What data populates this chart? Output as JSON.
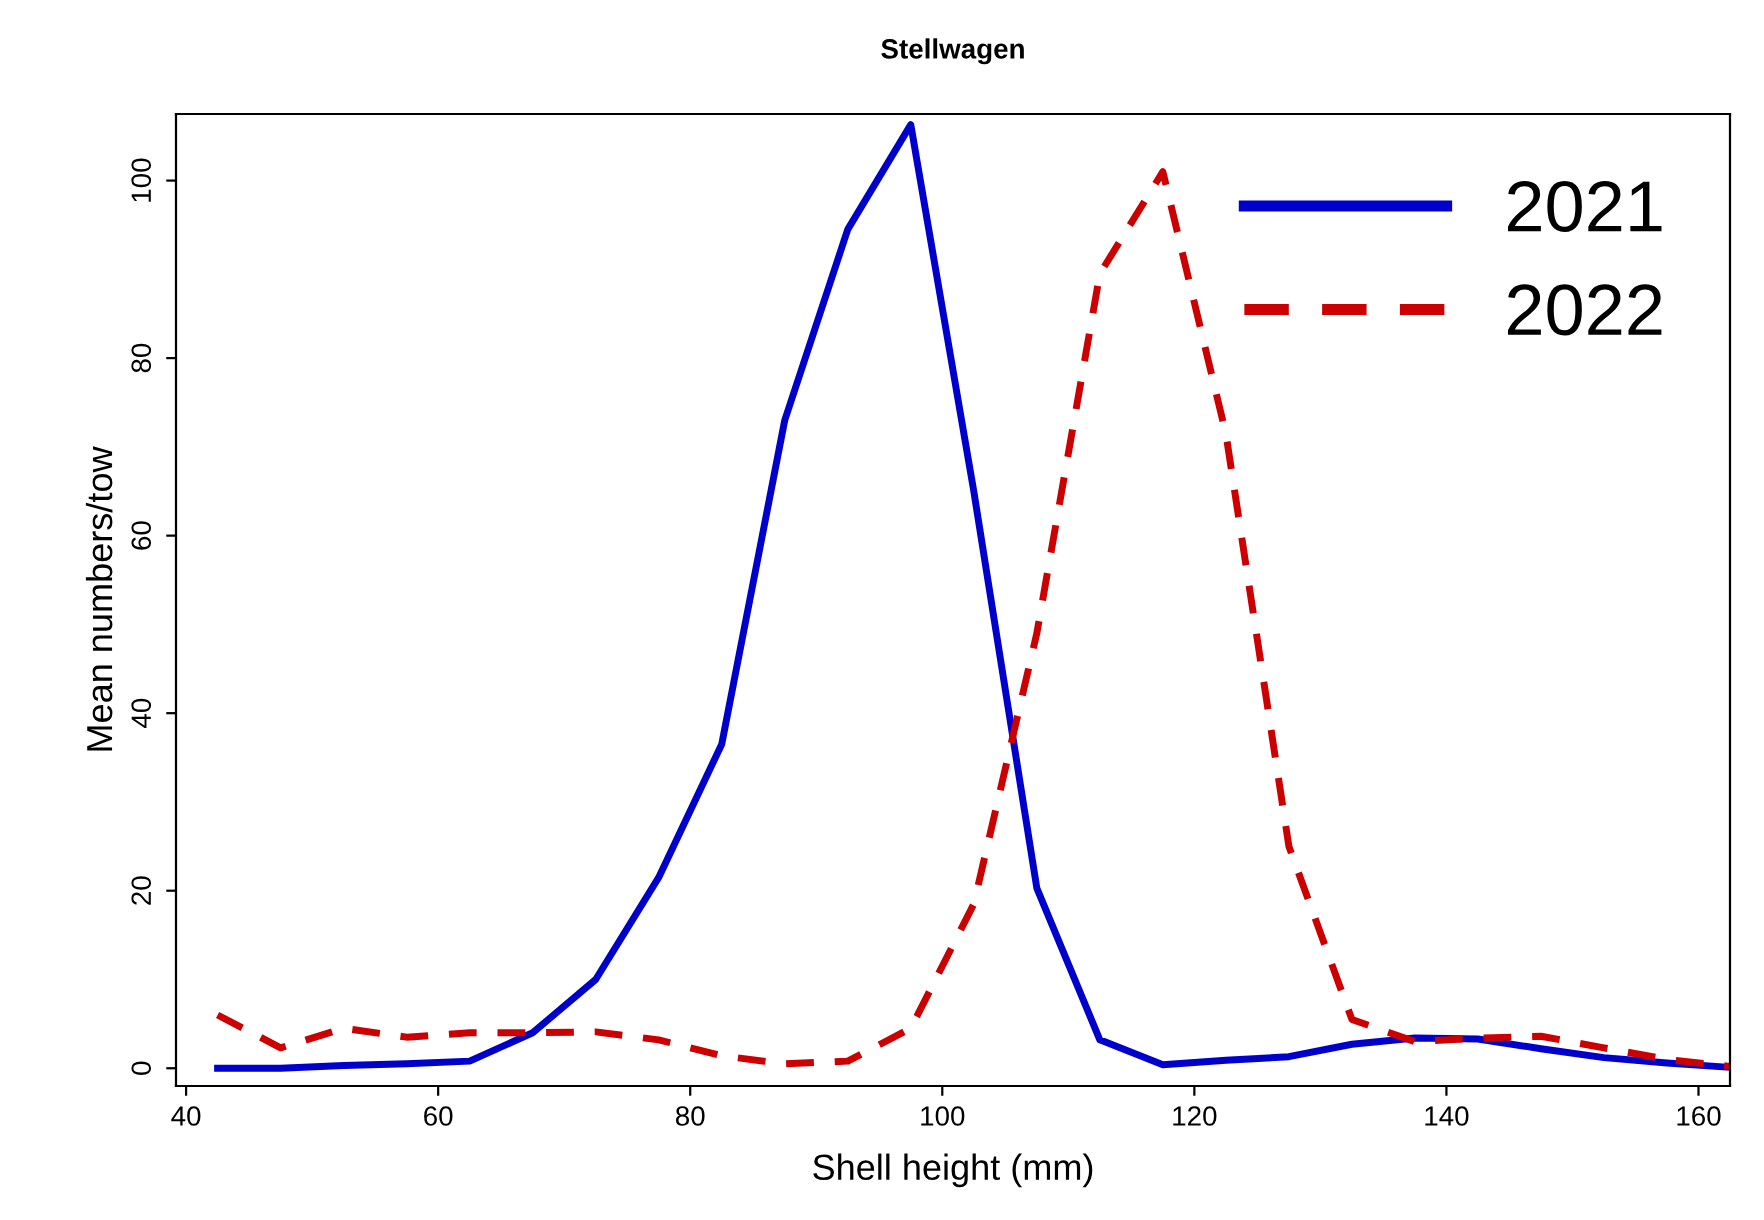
{
  "chart_data": {
    "type": "line",
    "title": "Stellwagen",
    "xlabel": "Shell height (mm)",
    "ylabel": "Mean numbers/tow",
    "x": [
      42.5,
      47.5,
      52.5,
      57.5,
      62.5,
      67.5,
      72.5,
      77.5,
      82.5,
      87.5,
      92.5,
      97.5,
      102.5,
      107.5,
      112.5,
      117.5,
      122.5,
      127.5,
      132.5,
      137.5,
      142.5,
      147.5,
      152.5,
      157.5,
      162.5
    ],
    "series": [
      {
        "name": "2021",
        "color": "#0000cd",
        "line_style": "solid",
        "values": [
          0,
          0,
          0.3,
          0.5,
          0.8,
          4,
          10,
          21.5,
          36.5,
          73,
          94.5,
          106.3,
          65,
          20.3,
          3.2,
          0.4,
          0.9,
          1.3,
          2.7,
          3.4,
          3.3,
          2.2,
          1.2,
          0.6,
          0.1
        ]
      },
      {
        "name": "2022",
        "color": "#cc0000",
        "line_style": "dashed",
        "values": [
          6,
          2.3,
          4.5,
          3.5,
          4,
          4,
          4.1,
          3.2,
          1.4,
          0.5,
          0.8,
          4.5,
          18.5,
          49,
          89.5,
          101,
          71.5,
          25,
          5.5,
          3,
          3.4,
          3.6,
          2.3,
          1,
          0.2
        ]
      }
    ],
    "xlim": [
      39.2,
      162.5
    ],
    "ylim": [
      -2,
      107.5
    ],
    "xticks": [
      40,
      60,
      80,
      100,
      120,
      140,
      160
    ],
    "yticks": [
      0,
      20,
      40,
      60,
      80,
      100
    ],
    "grid": false,
    "legend": "top right"
  }
}
